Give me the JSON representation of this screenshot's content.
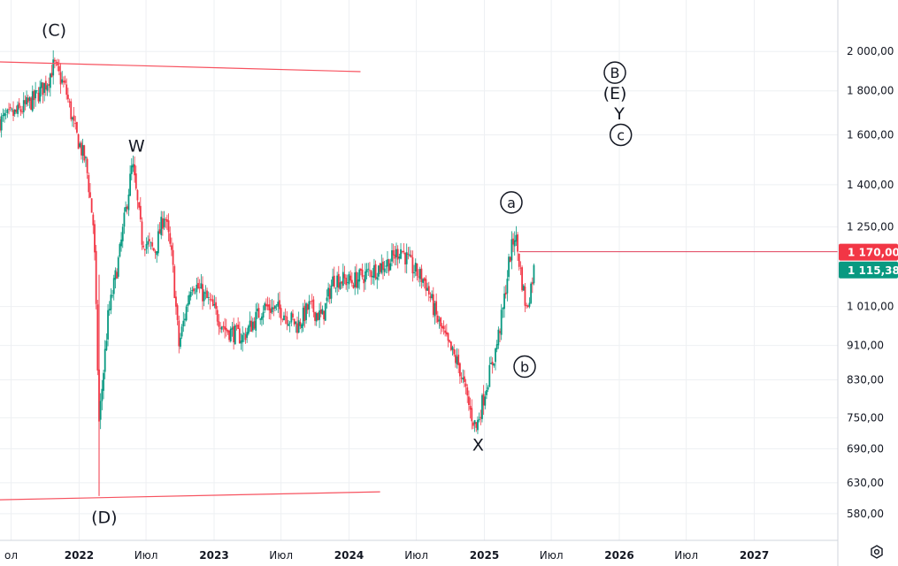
{
  "chart_data": {
    "type": "candlestick",
    "y_scale": "log",
    "ylim": [
      540,
      2200
    ],
    "xlim": [
      "2021-06-01",
      "2027-08-15"
    ],
    "grid": true,
    "y_ticks": [
      {
        "value": 2000,
        "label": "2 000,00"
      },
      {
        "value": 1800,
        "label": "1 800,00"
      },
      {
        "value": 1600,
        "label": "1 600,00"
      },
      {
        "value": 1400,
        "label": "1 400,00"
      },
      {
        "value": 1250,
        "label": "1 250,00"
      },
      {
        "value": 1010,
        "label": "1 010,00"
      },
      {
        "value": 910,
        "label": "910,00"
      },
      {
        "value": 830,
        "label": "830,00"
      },
      {
        "value": 750,
        "label": "750,00"
      },
      {
        "value": 690,
        "label": "690,00"
      },
      {
        "value": 630,
        "label": "630,00"
      },
      {
        "value": 580,
        "label": "580,00"
      }
    ],
    "x_ticks": [
      {
        "date": "2021-07-01",
        "label": "ол",
        "year": false
      },
      {
        "date": "2022-01-01",
        "label": "2022",
        "year": true
      },
      {
        "date": "2022-07-01",
        "label": "Июл",
        "year": false
      },
      {
        "date": "2023-01-01",
        "label": "2023",
        "year": true
      },
      {
        "date": "2023-07-01",
        "label": "Июл",
        "year": false
      },
      {
        "date": "2024-01-01",
        "label": "2024",
        "year": true
      },
      {
        "date": "2024-07-01",
        "label": "Июл",
        "year": false
      },
      {
        "date": "2025-01-01",
        "label": "2025",
        "year": true
      },
      {
        "date": "2025-07-01",
        "label": "Июл",
        "year": false
      },
      {
        "date": "2026-01-01",
        "label": "2026",
        "year": true
      },
      {
        "date": "2026-07-01",
        "label": "Июл",
        "year": false
      },
      {
        "date": "2027-01-01",
        "label": "2027",
        "year": true
      }
    ],
    "price_path": [
      [
        "2021-06-01",
        1660
      ],
      [
        "2021-07-20",
        1700
      ],
      [
        "2021-09-01",
        1760
      ],
      [
        "2021-10-05",
        1840
      ],
      [
        "2021-10-25",
        1930
      ],
      [
        "2021-11-25",
        1810
      ],
      [
        "2021-12-20",
        1620
      ],
      [
        "2022-01-20",
        1480
      ],
      [
        "2022-02-10",
        1240
      ],
      [
        "2022-02-24",
        740
      ],
      [
        "2022-03-20",
        980
      ],
      [
        "2022-04-20",
        1160
      ],
      [
        "2022-05-25",
        1480
      ],
      [
        "2022-06-20",
        1210
      ],
      [
        "2022-07-25",
        1170
      ],
      [
        "2022-08-20",
        1300
      ],
      [
        "2022-09-10",
        1140
      ],
      [
        "2022-09-28",
        910
      ],
      [
        "2022-11-01",
        1080
      ],
      [
        "2022-11-20",
        1060
      ],
      [
        "2022-12-20",
        1020
      ],
      [
        "2023-02-01",
        950
      ],
      [
        "2023-03-20",
        930
      ],
      [
        "2023-05-15",
        1010
      ],
      [
        "2023-07-01",
        1000
      ],
      [
        "2023-08-15",
        960
      ],
      [
        "2023-09-15",
        1010
      ],
      [
        "2023-10-20",
        980
      ],
      [
        "2023-11-20",
        1090
      ],
      [
        "2024-01-10",
        1080
      ],
      [
        "2024-03-01",
        1110
      ],
      [
        "2024-04-20",
        1140
      ],
      [
        "2024-05-20",
        1180
      ],
      [
        "2024-06-20",
        1120
      ],
      [
        "2024-07-25",
        1080
      ],
      [
        "2024-08-25",
        980
      ],
      [
        "2024-09-25",
        910
      ],
      [
        "2024-10-25",
        860
      ],
      [
        "2024-11-25",
        760
      ],
      [
        "2024-12-10",
        730
      ],
      [
        "2025-01-10",
        830
      ],
      [
        "2025-02-01",
        900
      ],
      [
        "2025-02-20",
        1000
      ],
      [
        "2025-03-10",
        1150
      ],
      [
        "2025-03-25",
        1230
      ],
      [
        "2025-04-10",
        1100
      ],
      [
        "2025-04-25",
        1000
      ],
      [
        "2025-05-15",
        1115
      ]
    ],
    "trend_lines": [
      {
        "from": [
          "2021-06-01",
          1945
        ],
        "to": [
          "2024-02-01",
          1895
        ]
      },
      {
        "from": [
          "2021-06-01",
          602
        ],
        "to": [
          "2024-03-25",
          615
        ]
      }
    ],
    "horizontal_level": {
      "value": 1170,
      "from": "2025-04-05"
    },
    "price_badges": [
      {
        "value": 1170,
        "label": "1 170,00",
        "color": "#f23645"
      },
      {
        "value": 1115.38,
        "label": "1 115,38",
        "color": "#089981"
      }
    ],
    "wave_labels": [
      {
        "text": "(C)",
        "date": "2021-10-25",
        "value": 2120,
        "circled": false
      },
      {
        "text": "W",
        "date": "2022-06-05",
        "value": 1555,
        "circled": false
      },
      {
        "text": "(D)",
        "date": "2022-03-10",
        "value": 575,
        "circled": false
      },
      {
        "text": "X",
        "date": "2024-12-15",
        "value": 698,
        "circled": false
      },
      {
        "text": "a",
        "date": "2025-03-15",
        "value": 1335,
        "circled": true
      },
      {
        "text": "b",
        "date": "2025-04-20",
        "value": 860,
        "circled": true
      },
      {
        "text": "B",
        "date": "2025-12-20",
        "value": 1890,
        "circled": true
      },
      {
        "text": "(E)",
        "date": "2025-12-20",
        "value": 1790,
        "circled": false
      },
      {
        "text": "Y",
        "date": "2026-01-01",
        "value": 1695,
        "circled": false
      },
      {
        "text": "c",
        "date": "2026-01-05",
        "value": 1600,
        "circled": true
      }
    ],
    "colors": {
      "up": "#089981",
      "down": "#f23645",
      "grid": "#eef0f3",
      "axis": "#d1d4dc",
      "trend": "#f7525f"
    }
  },
  "ui": {
    "settings_icon": "gear-icon"
  }
}
